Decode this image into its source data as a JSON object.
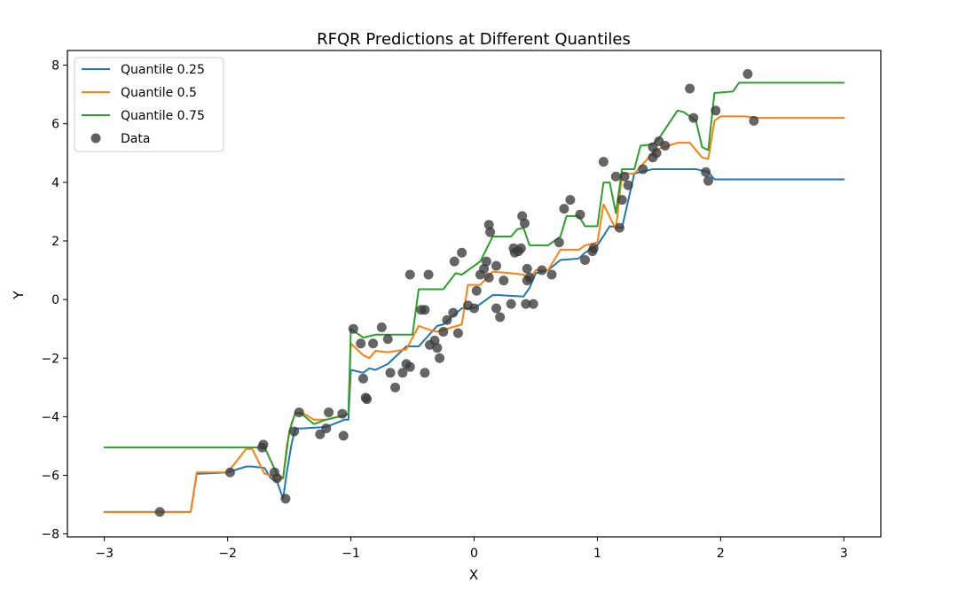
{
  "chart_data": {
    "type": "line",
    "title": "RFQR Predictions at Different Quantiles",
    "xlabel": "X",
    "ylabel": "Y",
    "xlim": [
      -3.3,
      3.3
    ],
    "ylim": [
      -8.1,
      8.5
    ],
    "x_ticks": [
      -3,
      -2,
      -1,
      0,
      1,
      2,
      3
    ],
    "x_tick_labels": [
      "−3",
      "−2",
      "−1",
      "0",
      "1",
      "2",
      "3"
    ],
    "y_ticks": [
      -8,
      -6,
      -4,
      -2,
      0,
      2,
      4,
      6,
      8
    ],
    "y_tick_labels": [
      "−8",
      "−6",
      "−4",
      "−2",
      "0",
      "2",
      "4",
      "6",
      "8"
    ],
    "legend_position": "top-left",
    "legend": [
      "Quantile 0.25",
      "Quantile 0.5",
      "Quantile 0.75",
      "Data"
    ],
    "series": [
      {
        "name": "Quantile 0.25",
        "color": "#1f77b4",
        "x": [
          -3.0,
          -2.3,
          -2.25,
          -2.0,
          -1.85,
          -1.8,
          -1.7,
          -1.65,
          -1.6,
          -1.55,
          -1.52,
          -1.48,
          -1.45,
          -1.4,
          -1.2,
          -1.05,
          -1.02,
          -1.0,
          -0.9,
          -0.85,
          -0.8,
          -0.7,
          -0.55,
          -0.45,
          -0.3,
          -0.25,
          -0.1,
          0.0,
          0.15,
          0.2,
          0.4,
          0.45,
          0.5,
          0.6,
          0.7,
          0.85,
          0.9,
          1.0,
          1.1,
          1.2,
          1.3,
          1.45,
          1.6,
          1.8,
          1.9,
          1.95,
          3.0
        ],
        "y": [
          -7.25,
          -7.25,
          -5.95,
          -5.9,
          -5.7,
          -5.7,
          -5.75,
          -6.1,
          -6.2,
          -6.8,
          -5.9,
          -4.9,
          -4.4,
          -4.4,
          -4.35,
          -4.1,
          -4.1,
          -2.4,
          -2.5,
          -2.35,
          -2.4,
          -2.2,
          -1.6,
          -1.6,
          -0.9,
          -0.85,
          -0.3,
          -0.3,
          0.15,
          0.15,
          0.1,
          0.4,
          0.9,
          1.0,
          1.35,
          1.4,
          1.6,
          1.85,
          2.5,
          2.45,
          4.3,
          4.45,
          4.45,
          4.45,
          4.35,
          4.1,
          4.1
        ]
      },
      {
        "name": "Quantile 0.5",
        "color": "#ff7f0e",
        "x": [
          -3.0,
          -2.3,
          -2.25,
          -2.0,
          -1.85,
          -1.8,
          -1.7,
          -1.65,
          -1.6,
          -1.55,
          -1.52,
          -1.48,
          -1.45,
          -1.4,
          -1.3,
          -1.2,
          -1.05,
          -1.02,
          -1.0,
          -0.9,
          -0.85,
          -0.8,
          -0.7,
          -0.55,
          -0.45,
          -0.35,
          -0.3,
          -0.1,
          -0.05,
          0.05,
          0.15,
          0.3,
          0.4,
          0.45,
          0.5,
          0.6,
          0.7,
          0.85,
          0.9,
          1.0,
          1.05,
          1.15,
          1.2,
          1.3,
          1.45,
          1.5,
          1.65,
          1.75,
          1.85,
          1.9,
          1.95,
          2.0,
          2.2,
          2.3,
          3.0
        ],
        "y": [
          -7.25,
          -7.25,
          -5.9,
          -5.9,
          -5.1,
          -5.1,
          -5.95,
          -6.0,
          -6.15,
          -6.1,
          -5.0,
          -4.2,
          -3.9,
          -3.85,
          -4.1,
          -4.1,
          -3.95,
          -3.9,
          -1.5,
          -1.9,
          -2.0,
          -1.75,
          -1.8,
          -1.7,
          -0.9,
          -1.05,
          -1.1,
          -0.85,
          0.5,
          0.5,
          0.95,
          0.9,
          0.85,
          0.7,
          1.0,
          1.0,
          1.7,
          1.7,
          1.85,
          1.95,
          3.25,
          2.4,
          4.3,
          4.3,
          5.0,
          5.15,
          5.35,
          5.35,
          4.85,
          4.8,
          6.1,
          6.25,
          6.25,
          6.2,
          6.2
        ]
      },
      {
        "name": "Quantile 0.75",
        "color": "#2ca02c",
        "x": [
          -3.0,
          -1.7,
          -1.6,
          -1.55,
          -1.5,
          -1.45,
          -1.4,
          -1.3,
          -1.2,
          -1.05,
          -1.02,
          -1.0,
          -0.9,
          -0.85,
          -0.8,
          -0.7,
          -0.5,
          -0.45,
          -0.25,
          -0.15,
          -0.1,
          0.05,
          0.15,
          0.3,
          0.35,
          0.4,
          0.45,
          0.5,
          0.6,
          0.7,
          0.75,
          0.85,
          0.9,
          1.0,
          1.05,
          1.1,
          1.15,
          1.2,
          1.3,
          1.35,
          1.45,
          1.5,
          1.65,
          1.7,
          1.8,
          1.85,
          1.9,
          1.95,
          2.1,
          2.15,
          2.3,
          3.0
        ],
        "y": [
          -5.05,
          -5.05,
          -5.95,
          -6.1,
          -4.5,
          -3.85,
          -3.9,
          -4.25,
          -4.1,
          -3.95,
          -3.9,
          -1.0,
          -1.3,
          -1.25,
          -1.2,
          -1.2,
          -1.2,
          0.35,
          0.35,
          0.9,
          0.85,
          1.3,
          2.15,
          2.15,
          2.4,
          2.45,
          1.85,
          1.85,
          1.85,
          2.15,
          2.85,
          2.85,
          2.5,
          2.5,
          4.0,
          4.0,
          2.95,
          4.45,
          4.45,
          5.25,
          5.3,
          5.5,
          6.45,
          6.4,
          6.1,
          5.2,
          5.1,
          7.05,
          7.1,
          7.4,
          7.4,
          7.4
        ]
      }
    ],
    "scatter": {
      "name": "Data",
      "color": "#3a3a3a",
      "points": [
        [
          -2.55,
          -7.25
        ],
        [
          -1.98,
          -5.9
        ],
        [
          -1.72,
          -5.05
        ],
        [
          -1.71,
          -4.95
        ],
        [
          -1.62,
          -5.9
        ],
        [
          -1.6,
          -6.1
        ],
        [
          -1.53,
          -6.8
        ],
        [
          -1.46,
          -4.5
        ],
        [
          -1.42,
          -3.85
        ],
        [
          -1.25,
          -4.6
        ],
        [
          -1.2,
          -4.4
        ],
        [
          -1.18,
          -3.85
        ],
        [
          -1.07,
          -3.9
        ],
        [
          -1.06,
          -4.65
        ],
        [
          -0.98,
          -1.0
        ],
        [
          -0.92,
          -1.5
        ],
        [
          -0.9,
          -2.7
        ],
        [
          -0.88,
          -3.35
        ],
        [
          -0.87,
          -3.4
        ],
        [
          -0.82,
          -1.5
        ],
        [
          -0.75,
          -0.95
        ],
        [
          -0.7,
          -1.35
        ],
        [
          -0.68,
          -2.5
        ],
        [
          -0.64,
          -3.0
        ],
        [
          -0.58,
          -2.5
        ],
        [
          -0.52,
          -2.3
        ],
        [
          -0.52,
          0.85
        ],
        [
          -0.43,
          -0.35
        ],
        [
          -0.4,
          -0.35
        ],
        [
          -0.4,
          -2.5
        ],
        [
          -0.37,
          0.85
        ],
        [
          -0.36,
          -1.55
        ],
        [
          -0.32,
          -1.4
        ],
        [
          -0.3,
          -1.65
        ],
        [
          -0.28,
          -2.0
        ],
        [
          -0.25,
          -1.1
        ],
        [
          -0.22,
          -0.7
        ],
        [
          -0.17,
          -0.45
        ],
        [
          -0.16,
          1.3
        ],
        [
          -0.13,
          -1.15
        ],
        [
          -0.1,
          1.6
        ],
        [
          -0.05,
          -0.2
        ],
        [
          0.0,
          -0.3
        ],
        [
          0.02,
          0.3
        ],
        [
          0.05,
          0.85
        ],
        [
          0.08,
          1.05
        ],
        [
          0.1,
          1.3
        ],
        [
          0.12,
          0.75
        ],
        [
          0.12,
          2.55
        ],
        [
          0.13,
          2.3
        ],
        [
          0.18,
          1.15
        ],
        [
          0.18,
          -0.3
        ],
        [
          0.21,
          -0.6
        ],
        [
          0.24,
          0.65
        ],
        [
          0.3,
          -0.15
        ],
        [
          0.32,
          1.75
        ],
        [
          0.33,
          1.6
        ],
        [
          0.36,
          1.65
        ],
        [
          0.38,
          1.75
        ],
        [
          0.39,
          2.85
        ],
        [
          0.41,
          2.6
        ],
        [
          0.42,
          -0.15
        ],
        [
          0.43,
          1.05
        ],
        [
          0.43,
          0.65
        ],
        [
          0.45,
          0.75
        ],
        [
          0.48,
          -0.15
        ],
        [
          0.63,
          0.85
        ],
        [
          0.69,
          1.95
        ],
        [
          0.73,
          3.1
        ],
        [
          0.78,
          3.4
        ],
        [
          0.86,
          2.9
        ],
        [
          0.9,
          1.35
        ],
        [
          0.96,
          1.65
        ],
        [
          0.97,
          1.75
        ],
        [
          1.05,
          4.7
        ],
        [
          1.15,
          4.2
        ],
        [
          1.18,
          2.45
        ],
        [
          1.2,
          3.4
        ],
        [
          1.22,
          4.2
        ],
        [
          1.25,
          3.9
        ],
        [
          1.45,
          5.2
        ],
        [
          1.48,
          5.0
        ],
        [
          1.5,
          5.4
        ],
        [
          1.55,
          5.25
        ],
        [
          1.75,
          7.2
        ],
        [
          1.78,
          6.2
        ],
        [
          1.88,
          4.35
        ],
        [
          1.9,
          4.05
        ],
        [
          1.96,
          6.45
        ],
        [
          2.22,
          7.7
        ],
        [
          2.27,
          6.1
        ],
        [
          1.37,
          4.45
        ],
        [
          1.45,
          4.85
        ],
        [
          0.55,
          1.0
        ],
        [
          -0.55,
          -2.2
        ]
      ]
    }
  }
}
